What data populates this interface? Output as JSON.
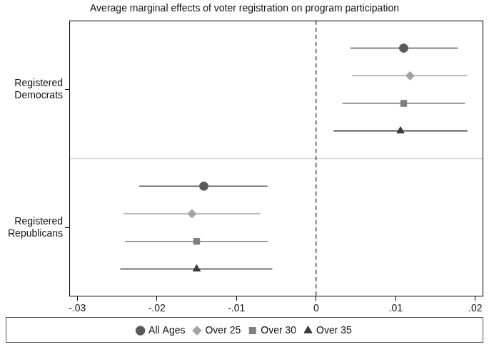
{
  "chart_data": {
    "type": "scatter",
    "title": "Average marginal effects of voter registration on program participation",
    "orientation": "horizontal",
    "categories": [
      "Registered Democrats",
      "Registered Republicans"
    ],
    "series": [
      {
        "name": "All Ages",
        "color": "#5a5a5a",
        "marker": "circle",
        "values": [
          0.011,
          -0.0141
        ],
        "lower": [
          0.0043,
          -0.0222
        ],
        "upper": [
          0.0178,
          -0.0061
        ]
      },
      {
        "name": "Over 25",
        "color": "#a3a3a3",
        "marker": "diamond",
        "values": [
          0.0118,
          -0.0156
        ],
        "lower": [
          0.0045,
          -0.0242
        ],
        "upper": [
          0.019,
          -0.007
        ]
      },
      {
        "name": "Over 30",
        "color": "#7f7f7f",
        "marker": "square",
        "values": [
          0.011,
          -0.015
        ],
        "lower": [
          0.0033,
          -0.024
        ],
        "upper": [
          0.0187,
          -0.006
        ]
      },
      {
        "name": "Over 35",
        "color": "#3a3a3a",
        "marker": "triangle",
        "values": [
          0.0106,
          -0.015
        ],
        "lower": [
          0.0022,
          -0.0246
        ],
        "upper": [
          0.019,
          -0.0055
        ]
      }
    ],
    "xlim": [
      -0.031,
      0.021
    ],
    "xticks": [
      {
        "value": -0.03,
        "label": "-.03"
      },
      {
        "value": -0.02,
        "label": "-.02"
      },
      {
        "value": -0.01,
        "label": "-.01"
      },
      0,
      {
        "value": 0.01,
        "label": ".01"
      },
      {
        "value": 0.02,
        "label": ".02"
      }
    ],
    "grid": false,
    "legend": "bottom"
  }
}
